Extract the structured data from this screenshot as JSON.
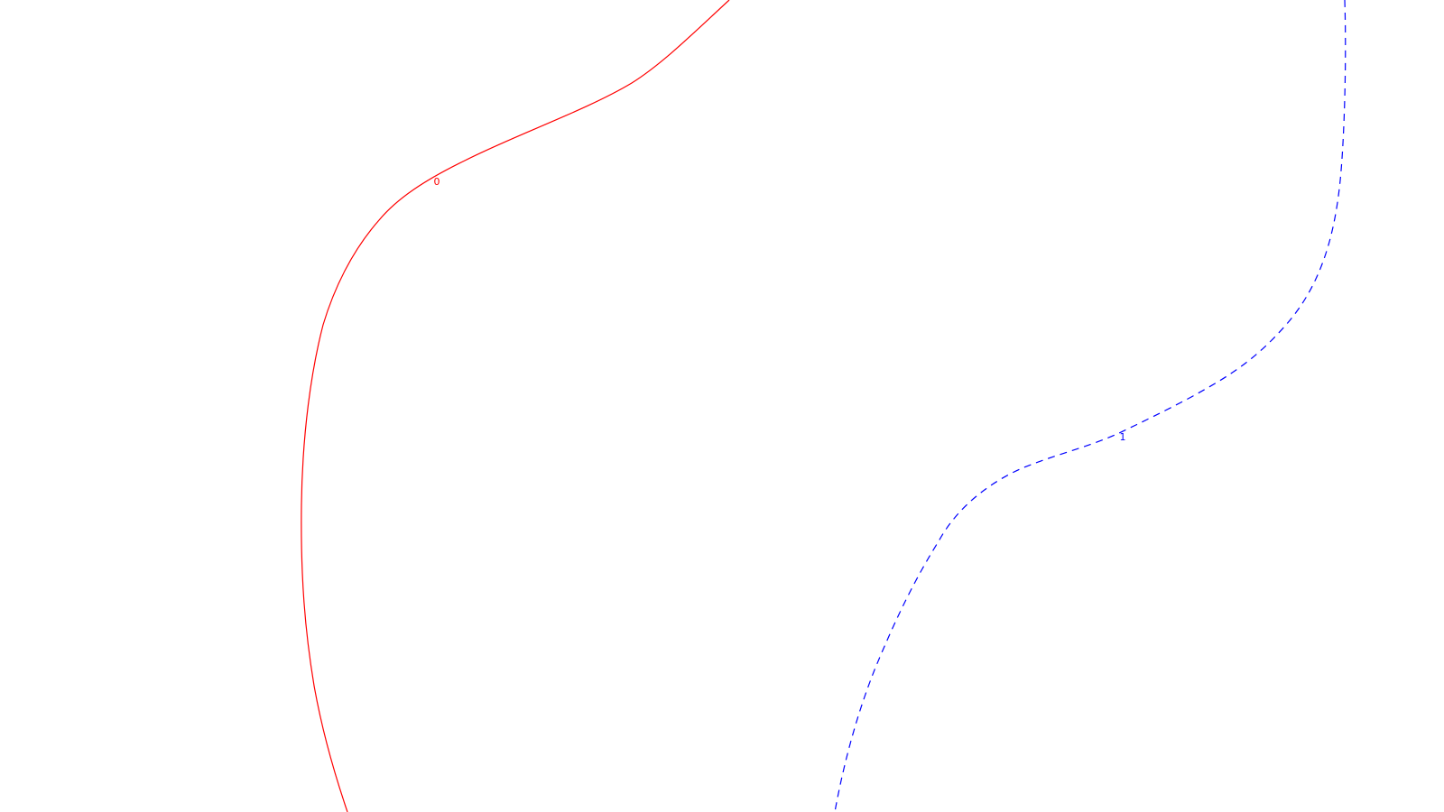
{
  "chart_data": {
    "type": "contour",
    "title": "",
    "xlabel": "",
    "ylabel": "",
    "grid": false,
    "legend": "none",
    "series": [
      {
        "level": "0",
        "color": "#ff0000",
        "dash": "solid"
      },
      {
        "level": "1",
        "color": "#0000ff",
        "dash": "dashed"
      }
    ]
  }
}
